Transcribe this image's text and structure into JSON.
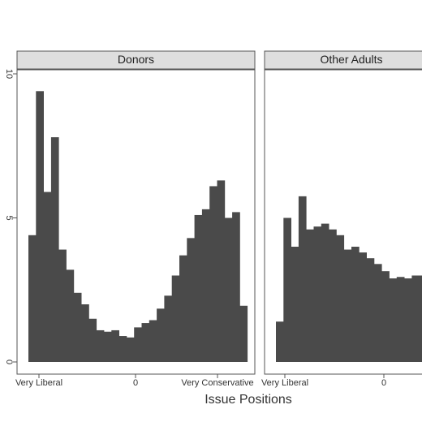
{
  "chart_data": {
    "type": "bar",
    "subtype": "faceted-histogram",
    "xlabel": "Issue Positions",
    "ylabel": "",
    "ylim": [
      0,
      10
    ],
    "y_ticks": [
      "0",
      "5",
      "10"
    ],
    "x_tick_labels": [
      "Very Liberal",
      "0",
      "Very Conservative"
    ],
    "bar_color": "#4a4a4a",
    "strip_color": "#dedede",
    "panels": [
      {
        "name": "Donors",
        "values": [
          4.4,
          9.4,
          5.9,
          7.8,
          3.9,
          3.2,
          2.4,
          2.0,
          1.5,
          1.1,
          1.05,
          1.1,
          0.9,
          0.85,
          1.2,
          1.35,
          1.45,
          1.85,
          2.3,
          3.0,
          3.7,
          4.3,
          5.1,
          5.3,
          6.1,
          6.3,
          5.0,
          5.2,
          1.95
        ]
      },
      {
        "name": "Other Adults",
        "values": [
          1.4,
          5.0,
          4.0,
          5.75,
          4.6,
          4.7,
          4.8,
          4.6,
          4.4,
          3.9,
          4.0,
          3.8,
          3.6,
          3.4,
          3.15,
          2.9,
          2.95,
          2.9,
          3.0,
          3.0
        ]
      }
    ]
  }
}
